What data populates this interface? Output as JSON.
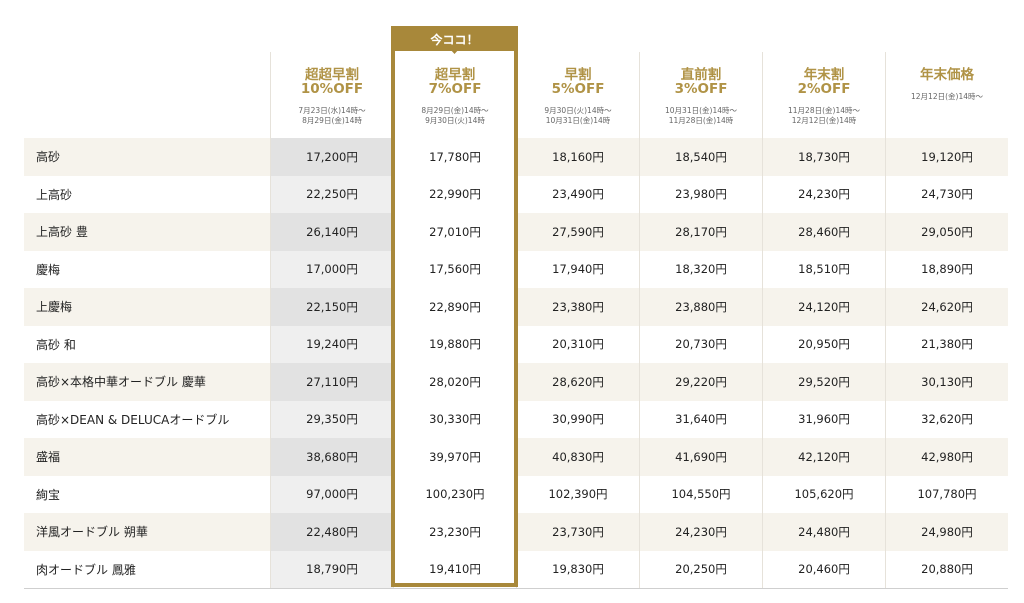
{
  "badge": "今ココ！",
  "columns": [
    {
      "title": "超超早割\n10%OFF",
      "dates": "7月23日(水)14時〜\n8月29日(金)14時"
    },
    {
      "title": "超早割\n7%OFF",
      "dates": "8月29日(金)14時〜\n9月30日(火)14時"
    },
    {
      "title": "早割\n5%OFF",
      "dates": "9月30日(火)14時〜\n10月31日(金)14時"
    },
    {
      "title": "直前割\n3%OFF",
      "dates": "10月31日(金)14時〜\n11月28日(金)14時"
    },
    {
      "title": "年末割\n2%OFF",
      "dates": "11月28日(金)14時〜\n12月12日(金)14時"
    },
    {
      "title": "年末価格",
      "dates": "12月12日(金)14時〜"
    }
  ],
  "rows": [
    {
      "name": "高砂",
      "prices": [
        "17,200円",
        "17,780円",
        "18,160円",
        "18,540円",
        "18,730円",
        "19,120円"
      ]
    },
    {
      "name": "上高砂",
      "prices": [
        "22,250円",
        "22,990円",
        "23,490円",
        "23,980円",
        "24,230円",
        "24,730円"
      ]
    },
    {
      "name": "上高砂 豊",
      "prices": [
        "26,140円",
        "27,010円",
        "27,590円",
        "28,170円",
        "28,460円",
        "29,050円"
      ]
    },
    {
      "name": "慶梅",
      "prices": [
        "17,000円",
        "17,560円",
        "17,940円",
        "18,320円",
        "18,510円",
        "18,890円"
      ]
    },
    {
      "name": "上慶梅",
      "prices": [
        "22,150円",
        "22,890円",
        "23,380円",
        "23,880円",
        "24,120円",
        "24,620円"
      ]
    },
    {
      "name": "高砂 和",
      "prices": [
        "19,240円",
        "19,880円",
        "20,310円",
        "20,730円",
        "20,950円",
        "21,380円"
      ]
    },
    {
      "name": "高砂×本格中華オードブル 慶華",
      "prices": [
        "27,110円",
        "28,020円",
        "28,620円",
        "29,220円",
        "29,520円",
        "30,130円"
      ]
    },
    {
      "name": "高砂×DEAN & DELUCAオードブル",
      "prices": [
        "29,350円",
        "30,330円",
        "30,990円",
        "31,640円",
        "31,960円",
        "32,620円"
      ]
    },
    {
      "name": "盛福",
      "prices": [
        "38,680円",
        "39,970円",
        "40,830円",
        "41,690円",
        "42,120円",
        "42,980円"
      ]
    },
    {
      "name": "絢宝",
      "prices": [
        "97,000円",
        "100,230円",
        "102,390円",
        "104,550円",
        "105,620円",
        "107,780円"
      ]
    },
    {
      "name": "洋風オードブル 朔華",
      "prices": [
        "22,480円",
        "23,230円",
        "23,730円",
        "24,230円",
        "24,480円",
        "24,980円"
      ]
    },
    {
      "name": "肉オードブル 鳳雅",
      "prices": [
        "18,790円",
        "19,410円",
        "19,830円",
        "20,250円",
        "20,460円",
        "20,880円"
      ]
    }
  ]
}
